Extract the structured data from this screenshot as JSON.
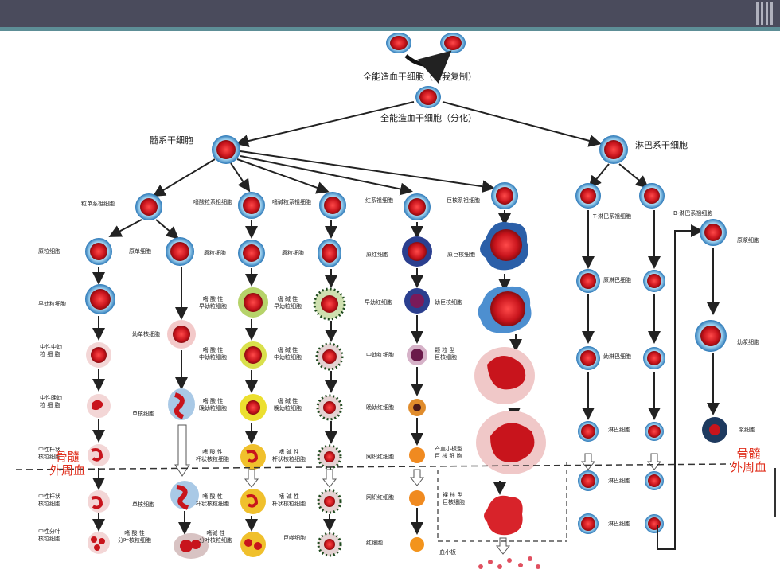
{
  "header": {
    "color": "#4a4b5c",
    "accent": "#5d8e96"
  },
  "top": {
    "stem_cell": "全能造血干细胞（自我复制）",
    "stem_cell_diff": "全能造血干细胞（分化）"
  },
  "branches": {
    "myeloid": "髓系干细胞",
    "lymphoid": "淋巴系干细胞"
  },
  "boundary": {
    "left": "骨髓\n外周血",
    "right": "骨髓\n外周血"
  },
  "progenitors": {
    "mono": "粒单系祖细胞",
    "eos": "嗜酸粒系祖细胞",
    "baso": "嗜碱粒系祖细胞",
    "ery": "红系祖细胞",
    "mega": "巨核系祖细胞",
    "t": "T-淋巴系祖细胞",
    "b": "B-淋巴系祖细胞"
  },
  "col_neut": [
    "原粒细胞",
    "早幼粒细胞",
    "中性中幼\n粒 细 胞",
    "中性晚幼\n粒 细 胞",
    "中性杆状\n核粒细胞",
    "中性杆状\n核粒细胞",
    "中性分叶\n核粒细胞"
  ],
  "col_mono": [
    "原单细胞",
    "幼单核细胞",
    "单核细胞",
    "单核细胞"
  ],
  "col_eos": [
    "原粒细胞",
    "嗜 酸 性\n早幼粒细胞",
    "嗜 酸 性\n中幼粒细胞",
    "嗜 酸 性\n晚幼粒细胞",
    "嗜 酸 性\n杆状核粒细胞",
    "嗜 酸 性\n杆状核粒细胞",
    "嗜 酸 性\n分叶核粒细胞"
  ],
  "col_baso": [
    "原粒细胞",
    "嗜 碱 性\n早幼粒细胞",
    "嗜 碱 性\n中幼粒细胞",
    "嗜 碱 性\n晚幼粒细胞",
    "嗜 碱 性\n杆状核粒细胞",
    "嗜 碱 性\n杆状核粒细胞",
    "嗜碱 性\n分叶核粒细胞",
    "巨噬细胞"
  ],
  "col_ery": [
    "原红细胞",
    "早幼红细胞",
    "中幼红细胞",
    "晚幼红细胞",
    "网织红细胞",
    "网织红细胞",
    "红细胞"
  ],
  "col_mega": [
    "原巨核细胞",
    "幼巨核细胞",
    "颗 粒 型\n巨核细胞",
    "产血小板型\n巨 核 细 胞",
    "裸 核 型\n巨核细胞",
    "血小板"
  ],
  "col_t": [
    "原淋巴细胞",
    "幼淋巴细胞",
    "淋巴细胞",
    "淋巴细胞",
    "淋巴细胞"
  ],
  "col_b": [
    "原浆细胞",
    "幼浆细胞",
    "浆细胞"
  ],
  "palette": {
    "cell_red": "#d8232a",
    "halo": "#4aa3d6",
    "arrow": "#222222",
    "boundary": "#e0301e"
  }
}
